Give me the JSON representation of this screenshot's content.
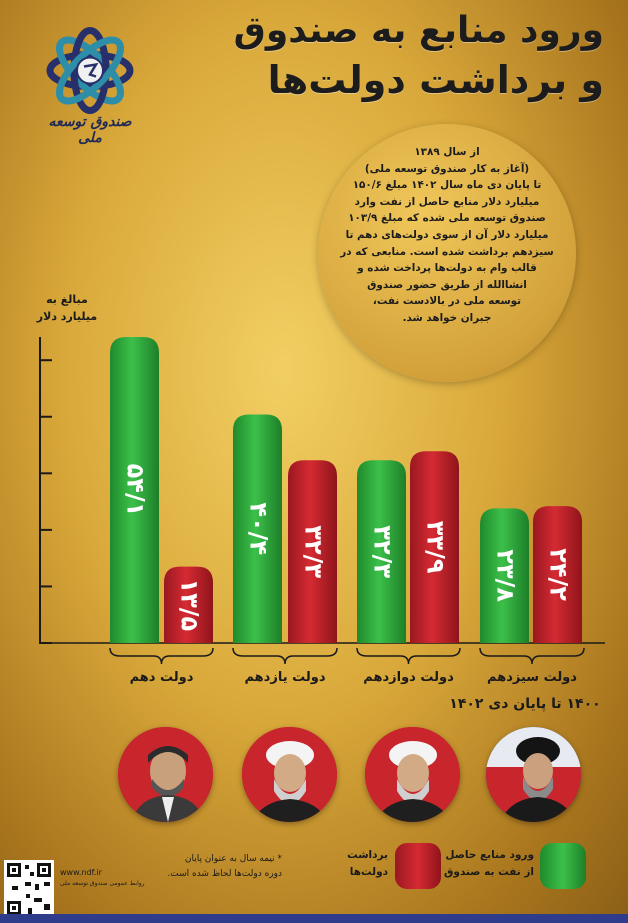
{
  "header": {
    "title_line1": "ورود منابع به صندوق",
    "title_line2": "و برداشت دولت‌ها"
  },
  "logo": {
    "caption": "صندوق توسعه ملی",
    "icon": "ndf-knot-logo"
  },
  "description": "از سال ۱۳۸۹\n(آغاز به کار صندوق توسعه ملی)\nتا پایان دی ماه سال ۱۴۰۲ مبلغ ۱۵۰/۶\nمیلیارد دلار منابع حاصل از نفت وارد\nصندوق توسعه ملی شده که مبلغ ۱۰۳/۹\nمیلیارد دلار آن از سوی دولت‌های دهم تا\nسیزدهم برداشت شده است. منابعی که در\nقالب وام به دولت‌ها پرداخت شده و\nانشاالله از طریق حضور صندوق\nتوسعه ملی در بالادست نفت،\nجبران خواهد شد.",
  "chart_data": {
    "type": "bar",
    "ylabel": "مبالغ به\nمیلیارد دلار",
    "categories": [
      "دولت دهم",
      "دولت یازدهم",
      "دولت دوازدهم",
      "دولت سیزدهم"
    ],
    "series": [
      {
        "name": "ورود منابع حاصل از نفت به صندوق",
        "color": "#2ea83a",
        "values": [
          54.1,
          40.4,
          32.3,
          23.8
        ],
        "labels": [
          "۵۴/۱",
          "۴۰/۴",
          "۳۲/۳",
          "۲۳/۸"
        ]
      },
      {
        "name": "برداشت دولت‌ها",
        "color": "#c0202a",
        "values": [
          13.5,
          32.3,
          33.9,
          24.2
        ],
        "labels": [
          "۱۳/۵",
          "۳۲/۳",
          "۳۳/۹",
          "۲۴/۲"
        ]
      }
    ],
    "ylim": [
      0,
      60
    ],
    "grid": false
  },
  "period_label": "۱۴۰۰ تا پایان دی ۱۴۰۲",
  "legend": {
    "inflow": "ورود منابع حاصل\nاز نفت به صندوق",
    "withdrawal": "برداشت\nدولت‌ها"
  },
  "footnote": "* نیمه سال به عنوان پایان\nدوره دولت‌ها لحاظ شده است.",
  "footer": {
    "website": "www.ndf.ir",
    "org": "روابط عمومی صندوق توسعه ملی"
  },
  "colors": {
    "green": "#2ea83a",
    "red": "#c0202a",
    "gold": "#d9a83a",
    "navy": "#1f2a55"
  }
}
